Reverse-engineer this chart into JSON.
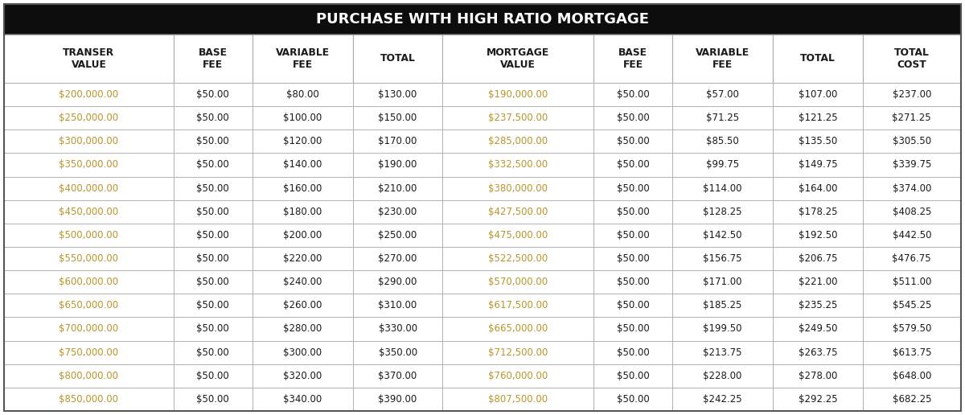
{
  "title": "PURCHASE WITH HIGH RATIO MORTGAGE",
  "title_bg": "#0d0d0d",
  "title_color": "#ffffff",
  "gold_color": "#b8952a",
  "black_color": "#1a1a1a",
  "col_headers": [
    "TRANSER\nVALUE",
    "BASE\nFEE",
    "VARIABLE\nFEE",
    "TOTAL",
    "MORTGAGE\nVALUE",
    "BASE\nFEE",
    "VARIABLE\nFEE",
    "TOTAL",
    "TOTAL\nCOST"
  ],
  "row_data": [
    [
      "$200,000.00",
      "$50.00",
      "$80.00",
      "$130.00",
      "$190,000.00",
      "$50.00",
      "$57.00",
      "$107.00",
      "$237.00"
    ],
    [
      "$250,000.00",
      "$50.00",
      "$100.00",
      "$150.00",
      "$237,500.00",
      "$50.00",
      "$71.25",
      "$121.25",
      "$271.25"
    ],
    [
      "$300,000.00",
      "$50.00",
      "$120.00",
      "$170.00",
      "$285,000.00",
      "$50.00",
      "$85.50",
      "$135.50",
      "$305.50"
    ],
    [
      "$350,000.00",
      "$50.00",
      "$140.00",
      "$190.00",
      "$332,500.00",
      "$50.00",
      "$99.75",
      "$149.75",
      "$339.75"
    ],
    [
      "$400,000.00",
      "$50.00",
      "$160.00",
      "$210.00",
      "$380,000.00",
      "$50.00",
      "$114.00",
      "$164.00",
      "$374.00"
    ],
    [
      "$450,000.00",
      "$50.00",
      "$180.00",
      "$230.00",
      "$427,500.00",
      "$50.00",
      "$128.25",
      "$178.25",
      "$408.25"
    ],
    [
      "$500,000.00",
      "$50.00",
      "$200.00",
      "$250.00",
      "$475,000.00",
      "$50.00",
      "$142.50",
      "$192.50",
      "$442.50"
    ],
    [
      "$550,000.00",
      "$50.00",
      "$220.00",
      "$270.00",
      "$522,500.00",
      "$50.00",
      "$156.75",
      "$206.75",
      "$476.75"
    ],
    [
      "$600,000.00",
      "$50.00",
      "$240.00",
      "$290.00",
      "$570,000.00",
      "$50.00",
      "$171.00",
      "$221.00",
      "$511.00"
    ],
    [
      "$650,000.00",
      "$50.00",
      "$260.00",
      "$310.00",
      "$617,500.00",
      "$50.00",
      "$185.25",
      "$235.25",
      "$545.25"
    ],
    [
      "$700,000.00",
      "$50.00",
      "$280.00",
      "$330.00",
      "$665,000.00",
      "$50.00",
      "$199.50",
      "$249.50",
      "$579.50"
    ],
    [
      "$750,000.00",
      "$50.00",
      "$300.00",
      "$350.00",
      "$712,500.00",
      "$50.00",
      "$213.75",
      "$263.75",
      "$613.75"
    ],
    [
      "$800,000.00",
      "$50.00",
      "$320.00",
      "$370.00",
      "$760,000.00",
      "$50.00",
      "$228.00",
      "$278.00",
      "$648.00"
    ],
    [
      "$850,000.00",
      "$50.00",
      "$340.00",
      "$390.00",
      "$807,500.00",
      "$50.00",
      "$242.25",
      "$292.25",
      "$682.25"
    ]
  ],
  "gold_cols": [
    0,
    4
  ],
  "bg_color": "#ffffff",
  "col_widths_raw": [
    1.55,
    0.72,
    0.92,
    0.82,
    1.38,
    0.72,
    0.92,
    0.82,
    0.9
  ]
}
